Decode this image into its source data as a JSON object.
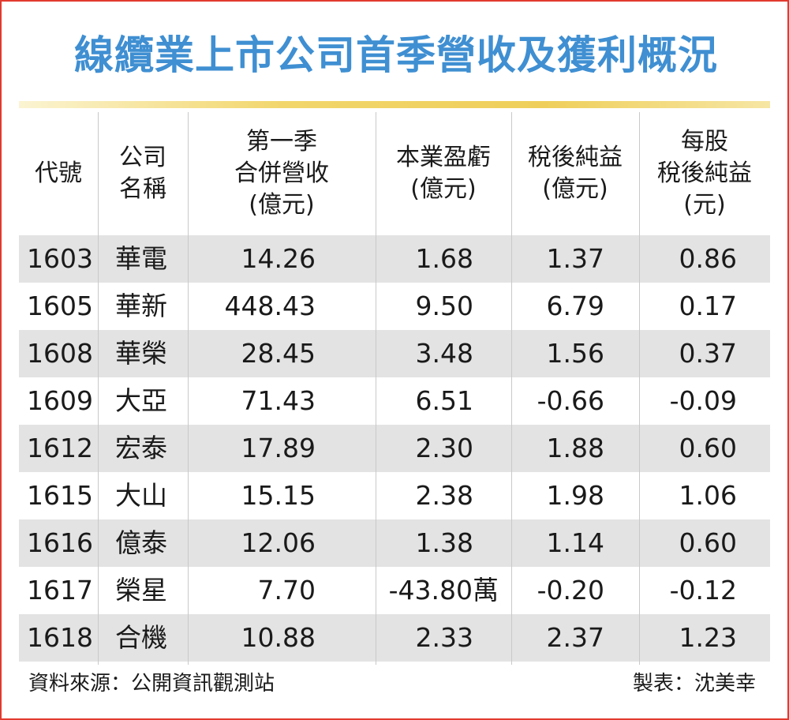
{
  "title": "線纜業上市公司首季營收及獲利概況",
  "chart_data": {
    "type": "table",
    "columns": [
      "代號",
      "公司\n名稱",
      "第一季\n合併營收\n(億元)",
      "本業盈虧\n(億元)",
      "稅後純益\n(億元)",
      "每股\n稅後純益\n(元)"
    ],
    "rows": [
      [
        "1603",
        "華電",
        "14.26",
        "1.68",
        "1.37",
        "0.86"
      ],
      [
        "1605",
        "華新",
        "448.43",
        "9.50",
        "6.79",
        "0.17"
      ],
      [
        "1608",
        "華榮",
        "28.45",
        "3.48",
        "1.56",
        "0.37"
      ],
      [
        "1609",
        "大亞",
        "71.43",
        "6.51",
        "-0.66",
        "-0.09"
      ],
      [
        "1612",
        "宏泰",
        "17.89",
        "2.30",
        "1.88",
        "0.60"
      ],
      [
        "1615",
        "大山",
        "15.15",
        "2.38",
        "1.98",
        "1.06"
      ],
      [
        "1616",
        "億泰",
        "12.06",
        "1.38",
        "1.14",
        "0.60"
      ],
      [
        "1617",
        "榮星",
        "7.70",
        "-43.80萬",
        "-0.20",
        "-0.12"
      ],
      [
        "1618",
        "合機",
        "10.88",
        "2.33",
        "2.37",
        "1.23"
      ]
    ]
  },
  "footer": {
    "source": "資料來源：公開資訊觀測站",
    "author": "製表：沈美幸"
  },
  "colors": {
    "border": "#e23a2e",
    "title": "#3f8fd2",
    "rule": "#efcf5a",
    "row_shade": "#e3e3e3"
  }
}
